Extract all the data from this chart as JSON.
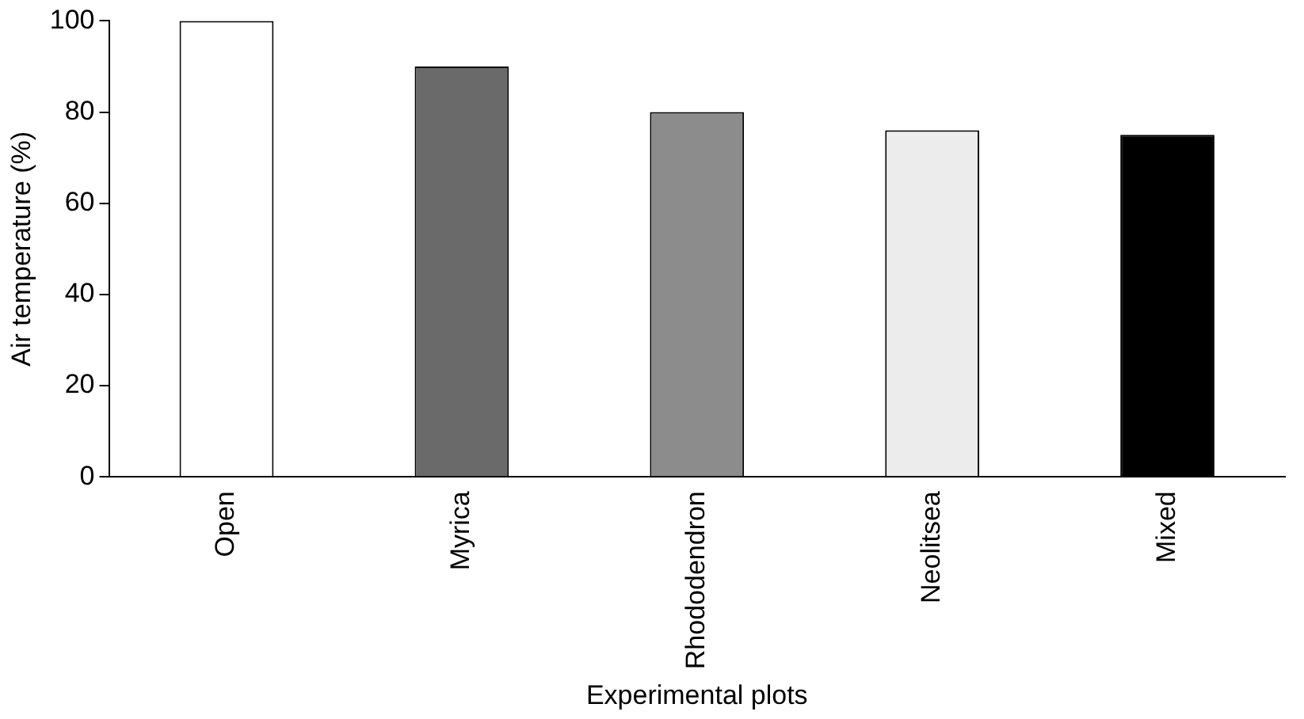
{
  "chart_data": {
    "type": "bar",
    "xlabel": "Experimental plots",
    "ylabel": "Air temperature (%)",
    "categories": [
      "Open",
      "Myrica",
      "Rhododendron",
      "Neolitsea",
      "Mixed"
    ],
    "values": [
      100,
      90,
      80,
      76,
      75
    ],
    "colors": [
      "#ffffff",
      "#6a6a6a",
      "#8c8c8c",
      "#ececec",
      "#000000"
    ],
    "ylim": [
      0,
      100
    ],
    "yticks": [
      0,
      20,
      40,
      60,
      80,
      100
    ],
    "grid": false,
    "legend": false
  }
}
